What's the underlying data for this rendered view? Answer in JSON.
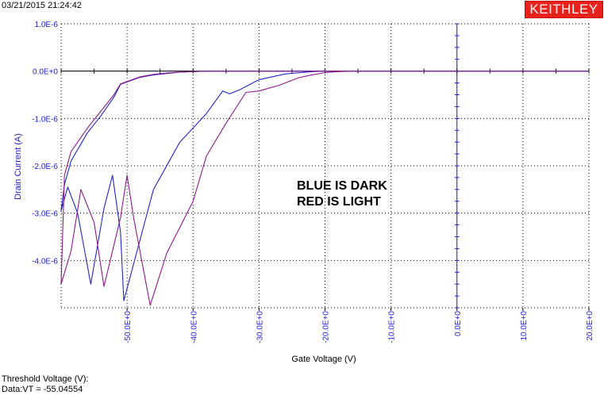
{
  "header": {
    "timestamp": "03/21/2015 21:24:42",
    "brand": "KEITHLEY"
  },
  "footer": {
    "line1": "Threshold Voltage (V):",
    "line2": "Data:VT = -55.04554"
  },
  "colors": {
    "blue": "#2424c8",
    "purple": "#8a1a8a",
    "axis_labels": "#1f1fd0",
    "grid": "#000000",
    "brand_bg": "#e8211d"
  },
  "chart_data": {
    "type": "line",
    "title": "",
    "xlabel": "Gate Voltage (V)",
    "ylabel": "Drain Current (A)",
    "xlim": [
      -60,
      20
    ],
    "ylim": [
      -5e-06,
      1e-06
    ],
    "grid": "dotted",
    "x_ticks": [
      -50,
      -40,
      -30,
      -20,
      -10,
      0,
      10,
      20
    ],
    "x_tick_labels": [
      "-50.0E+0",
      "-40.0E+0",
      "-30.0E+0",
      "-20.0E+0",
      "-10.0E+0",
      "0.0E+0",
      "10.0E+0",
      "20.0E+0"
    ],
    "y_ticks": [
      1e-06,
      0,
      -1e-06,
      -2e-06,
      -3e-06,
      -4e-06
    ],
    "y_tick_labels": [
      "1.0E-6",
      "0.0E+0",
      "-1.0E-6",
      "-2.0E-6",
      "-3.0E-6",
      "-4.0E-6"
    ],
    "annotations": [
      "BLUE IS DARK",
      "RED IS LIGHT"
    ],
    "series": [
      {
        "color": "#2424c8",
        "x": [
          20,
          0,
          -10,
          -18,
          -20,
          -22,
          -26,
          -30,
          -33,
          -34.5,
          -35.5,
          -38,
          -42,
          -46,
          -50.5,
          -51,
          -52.2,
          -53.5,
          -55.5,
          -57.5,
          -59,
          -60,
          -59.5,
          -58.5,
          -56,
          -54,
          -52,
          -51,
          -48,
          -46,
          -44,
          -42,
          -40,
          -38,
          -36,
          -34,
          -32,
          -30,
          -28,
          -25,
          -22,
          -20,
          -10,
          0,
          20
        ],
        "y": [
          0,
          0,
          0,
          0,
          0,
          -1e-08,
          -6e-08,
          -1.8e-07,
          -4e-07,
          -4.8e-07,
          -4.2e-07,
          -9e-07,
          -1.5e-06,
          -2.5e-06,
          -4.85e-06,
          -3.4e-06,
          -2.2e-06,
          -2.9e-06,
          -4.5e-06,
          -3e-06,
          -2.45e-06,
          -2.95e-06,
          -2.4e-06,
          -1.9e-06,
          -1.3e-06,
          -9.5e-07,
          -5.5e-07,
          -2.8e-07,
          -1.3e-07,
          -8e-08,
          -5e-08,
          -2e-08,
          -1e-08,
          0,
          0,
          0,
          0,
          0,
          0,
          0,
          0,
          0,
          0,
          0,
          0
        ]
      },
      {
        "color": "#8a1a8a",
        "x": [
          20,
          0,
          -10,
          -16,
          -18,
          -20,
          -22,
          -24,
          -27,
          -29,
          -30,
          -32,
          -35,
          -38,
          -40,
          -44,
          -46.5,
          -49,
          -50,
          -51,
          -53.5,
          -55,
          -57,
          -58.5,
          -60,
          -59.5,
          -58.5,
          -56,
          -54,
          -52,
          -51,
          -48,
          -46,
          -44,
          -42,
          -40,
          -38,
          -36,
          -34,
          -32,
          -30,
          -28,
          -24,
          -22,
          -20,
          -10,
          0,
          20
        ],
        "y": [
          0,
          0,
          0,
          0,
          -1e-08,
          -3e-08,
          -8e-08,
          -1.4e-07,
          -3e-07,
          -3.8e-07,
          -4.2e-07,
          -4.5e-07,
          -1.1e-06,
          -1.8e-06,
          -2.75e-06,
          -3.85e-06,
          -4.95e-06,
          -3.1e-06,
          -2.2e-06,
          -3.1e-06,
          -4.55e-06,
          -3.2e-06,
          -2.5e-06,
          -3.8e-06,
          -4.5e-06,
          -2.2e-06,
          -1.7e-06,
          -1.2e-06,
          -8.5e-07,
          -5e-07,
          -2.7e-07,
          -1.2e-07,
          -7e-08,
          -4e-08,
          -2e-08,
          -1e-08,
          0,
          0,
          0,
          0,
          0,
          0,
          0,
          0,
          0,
          0,
          0,
          0
        ]
      }
    ]
  }
}
